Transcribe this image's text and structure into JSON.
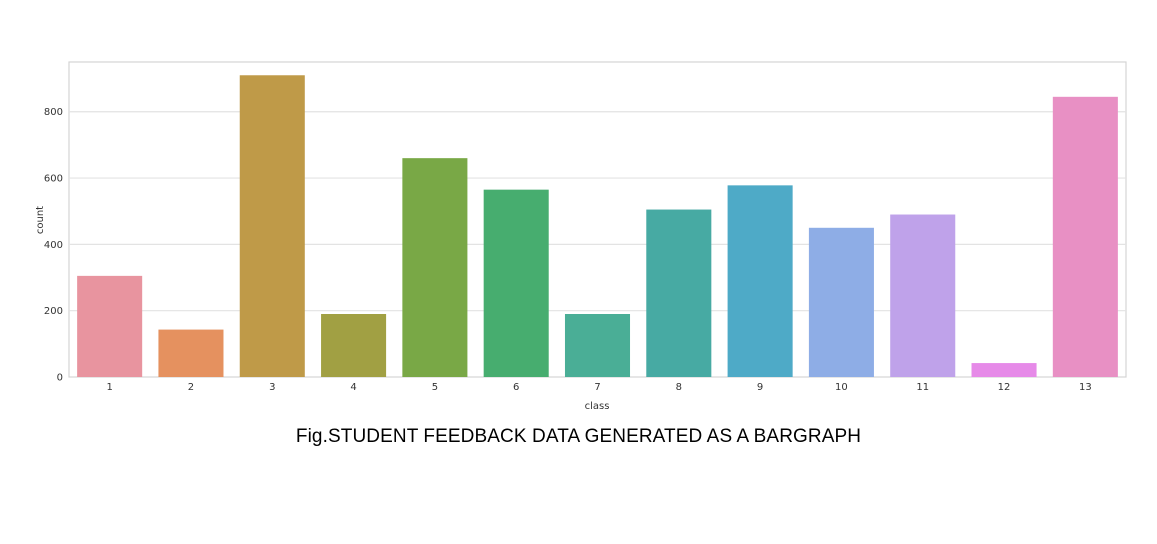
{
  "caption": "Fig.STUDENT FEEDBACK DATA GENERATED AS A BARGRAPH",
  "chart_data": {
    "type": "bar",
    "xlabel": "class",
    "ylabel": "count",
    "categories": [
      "1",
      "2",
      "3",
      "4",
      "5",
      "6",
      "7",
      "8",
      "9",
      "10",
      "11",
      "12",
      "13"
    ],
    "values": [
      305,
      143,
      910,
      190,
      660,
      565,
      190,
      505,
      578,
      450,
      490,
      42,
      845
    ],
    "colors": [
      "#e8949f",
      "#e5915f",
      "#bf9a48",
      "#a1a043",
      "#79a846",
      "#47ad6f",
      "#4aae96",
      "#47aaa3",
      "#4eaac7",
      "#8eade6",
      "#bfa2ea",
      "#e68ae8",
      "#e890c4"
    ],
    "ylim": [
      0,
      950
    ],
    "yticks": [
      0,
      200,
      400,
      600,
      800
    ],
    "grid": true
  }
}
